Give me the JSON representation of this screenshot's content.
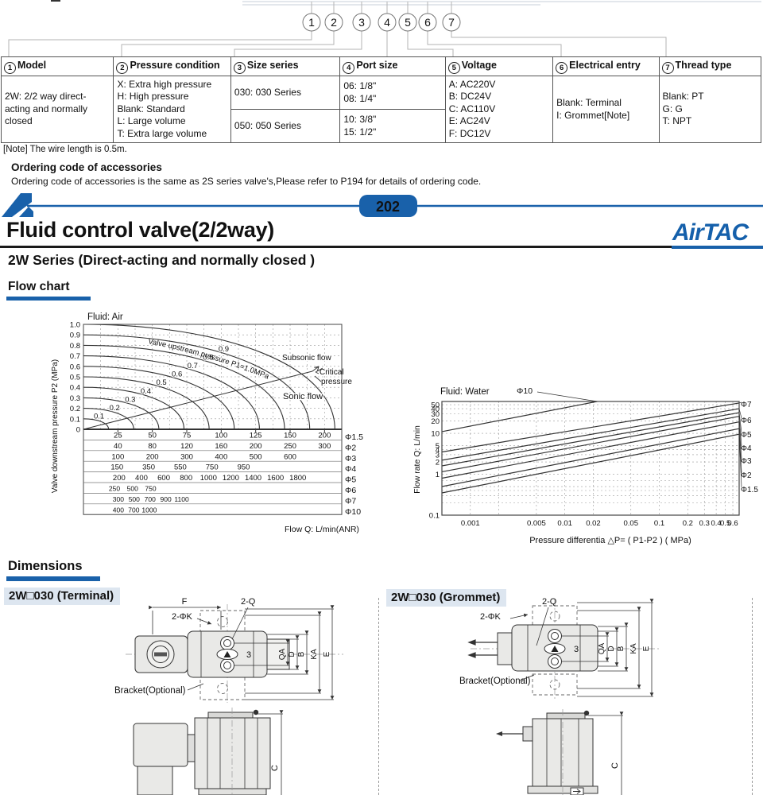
{
  "page": {
    "note": "[Note] The wire length is 0.5m.",
    "accessories_heading": "Ordering code of accessories",
    "accessories_body": "Ordering code of accessories is the same as 2S series valve's,Please refer to P194  for details  of ordering code.",
    "page_number": "202",
    "brand": "AirTAC",
    "title": "Fluid control valve(2/2way)",
    "subtitle": "2W Series (Direct-acting and normally closed )",
    "flow_heading": "Flow chart",
    "dims_heading": "Dimensions"
  },
  "ordering_circles": [
    "1",
    "2",
    "3",
    "4",
    "5",
    "6",
    "7"
  ],
  "ordering_table": {
    "columns": [
      {
        "num": "1",
        "title": "Model",
        "body": "2W: 2/2 way direct-acting and normally closed"
      },
      {
        "num": "2",
        "title": "Pressure condition",
        "body": "X: Extra high pressure\nH: High pressure\nBlank: Standard\nL: Large volume\nT: Extra large volume"
      },
      {
        "num": "3",
        "title": "Size series",
        "row1": "030: 030 Series",
        "row2": "050: 050 Series"
      },
      {
        "num": "4",
        "title": "Port size",
        "row1": "06: 1/8\"\n08: 1/4\"",
        "row2": "10: 3/8\"\n15: 1/2\""
      },
      {
        "num": "5",
        "title": "Voltage",
        "body": "A: AC220V\nB: DC24V\nC: AC110V\nE: AC24V\nF: DC12V"
      },
      {
        "num": "6",
        "title": "Electrical entry",
        "body": "Blank: Terminal\nI: Grommet[Note]"
      },
      {
        "num": "7",
        "title": "Thread type",
        "body": "Blank: PT\nG: G\nT: NPT"
      }
    ]
  },
  "chart_data": [
    {
      "type": "line",
      "title": "Fluid: Air",
      "xlabel": "Flow Q: L/min(ANR)",
      "ylabel": "Valve downstream pressure  P2    (MPa)",
      "ylim": [
        0,
        1.0
      ],
      "yticks": [
        "1.0",
        "0.9",
        "0.8",
        "0.7",
        "0.6",
        "0.5",
        "0.4",
        "0.3",
        "0.2",
        "0.1",
        "0"
      ],
      "upstream_pressures": [
        0.1,
        0.2,
        0.3,
        0.4,
        0.5,
        0.6,
        0.7,
        0.8,
        0.9,
        1.0
      ],
      "curve_labels": [
        "0.1",
        "0.2",
        "0.3",
        "0.4",
        "0.5",
        "0.6",
        "0.7",
        "0.8",
        "0.9"
      ],
      "curve_family_label": "Valve upstream pressure P1=1.0MPa",
      "annotations": {
        "subsonic": "Subsonic flow",
        "critical1": "Critical",
        "critical2": "pressure",
        "sonic": "Sonic flow"
      },
      "grid": true,
      "flow_scales": [
        {
          "orifice": "Φ1.5",
          "values": [
            25,
            50,
            75,
            100,
            125,
            150,
            200
          ]
        },
        {
          "orifice": "Φ2",
          "values": [
            40,
            80,
            120,
            160,
            200,
            250,
            300
          ]
        },
        {
          "orifice": "Φ3",
          "values": [
            100,
            200,
            300,
            400,
            500,
            600
          ]
        },
        {
          "orifice": "Φ4",
          "values": [
            150,
            350,
            550,
            750,
            950
          ]
        },
        {
          "orifice": "Φ5",
          "values": [
            200,
            400,
            600,
            800,
            1000,
            1200,
            1400,
            1600,
            1800
          ]
        },
        {
          "orifice": "Φ6",
          "values": [
            250,
            500,
            750
          ]
        },
        {
          "orifice": "Φ7",
          "values": [
            300,
            500,
            700,
            900,
            1100
          ]
        },
        {
          "orifice": "Φ10",
          "values": [
            400,
            700,
            1000
          ]
        }
      ]
    },
    {
      "type": "line",
      "title": "Fluid: Water",
      "xlabel": "Pressure differentia  △P= ( P1-P2 )      ( MPa)",
      "ylabel": "Flow rate Q: L/min",
      "xscale": "log",
      "yscale": "log",
      "xlim": [
        0.0005,
        0.7
      ],
      "ylim": [
        0.1,
        60
      ],
      "xticks": [
        "0.001",
        "0.005",
        "0.01",
        "0.02",
        "0.05",
        "0.1",
        "0.2",
        "0.3",
        "0.4",
        "0.5",
        "0.6"
      ],
      "yticks": [
        "50",
        "40",
        "30",
        "20",
        "10",
        "5",
        "4",
        "3",
        "2",
        "1",
        "0.1"
      ],
      "top_label": "Φ10",
      "grid": true,
      "series": [
        {
          "name": "Φ10",
          "points": [
            [
              0.0005,
              11
            ],
            [
              0.022,
              60
            ]
          ]
        },
        {
          "name": "Φ7",
          "points": [
            [
              0.0005,
              3.5
            ],
            [
              0.7,
              55
            ]
          ]
        },
        {
          "name": "Φ6",
          "points": [
            [
              0.0005,
              2.2
            ],
            [
              0.7,
              40
            ]
          ]
        },
        {
          "name": "Φ5",
          "points": [
            [
              0.0005,
              1.6
            ],
            [
              0.7,
              32
            ]
          ]
        },
        {
          "name": "Φ4",
          "points": [
            [
              0.0005,
              1.15
            ],
            [
              0.7,
              26
            ]
          ]
        },
        {
          "name": "Φ3",
          "points": [
            [
              0.0005,
              0.8
            ],
            [
              0.7,
              19
            ]
          ]
        },
        {
          "name": "Φ2",
          "points": [
            [
              0.0005,
              0.5
            ],
            [
              0.7,
              13
            ]
          ]
        },
        {
          "name": "Φ1.5",
          "points": [
            [
              0.0005,
              0.35
            ],
            [
              0.7,
              9.5
            ]
          ]
        }
      ]
    }
  ],
  "dims": {
    "terminal": {
      "label": "2W□030 (Terminal)",
      "f": "F",
      "two_q": "2-Q",
      "two_phi_k": "2-ΦK",
      "qa": "QA",
      "d": "D",
      "b": "B",
      "ka": "KA",
      "e": "E",
      "c": "C",
      "port_num": "3",
      "bracket": "Bracket(Optional)"
    },
    "grommet": {
      "label": "2W□030  (Grommet)",
      "two_q": "2-Q",
      "two_phi_k": "2-ΦK",
      "qa": "QA",
      "d": "D",
      "b": "B",
      "ka": "KA",
      "e": "E",
      "c": "C",
      "port_num": "3",
      "bracket": "Bracket(Optional)"
    }
  },
  "colors": {
    "accent": "#1961aa",
    "chip_bg": "#dde6f0",
    "line_gray": "#b0b0b0",
    "drawing_fill": "#e9e9e7"
  }
}
